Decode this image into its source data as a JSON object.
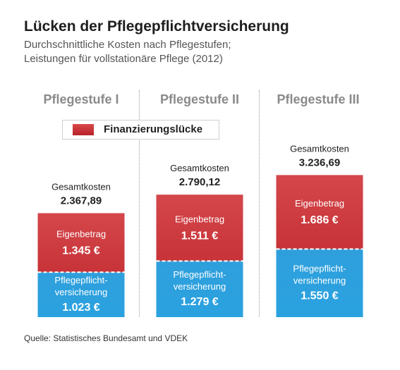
{
  "title": "Lücken der Pflegepflichtversicherung",
  "subtitle_lines": [
    "Durchschnittliche Kosten nach Pflegestufen;",
    "Leistungen für vollstationäre Pflege (2012)"
  ],
  "legend_label": "Finanzierungslücke",
  "source": "Quelle: Statistisches Bundesamt und VDEK",
  "colors": {
    "eigenbetrag": "#c73338",
    "pflegeversicherung": "#2aa2e0",
    "separator": "#ffffff"
  },
  "chart_data": {
    "type": "bar",
    "stacked": true,
    "categories": [
      "Pflegestufe I",
      "Pflegestufe II",
      "Pflegestufe III"
    ],
    "totals_label": "Gesamtkosten",
    "totals": [
      "2.367,89",
      "2.790,12",
      "3.236,69"
    ],
    "series": [
      {
        "label": "Pflegepflicht-versicherung",
        "label_lines": [
          "Pflegepflicht-",
          "versicherung"
        ],
        "values": [
          1023,
          1279,
          1550
        ],
        "display": [
          "1.023 €",
          "1.279 €",
          "1.550 €"
        ]
      },
      {
        "label": "Eigenbetrag",
        "label_lines": [
          "Eigenbetrag"
        ],
        "values": [
          1345,
          1511,
          1686
        ],
        "display": [
          "1.345 €",
          "1.511 €",
          "1.686 €"
        ]
      }
    ]
  }
}
